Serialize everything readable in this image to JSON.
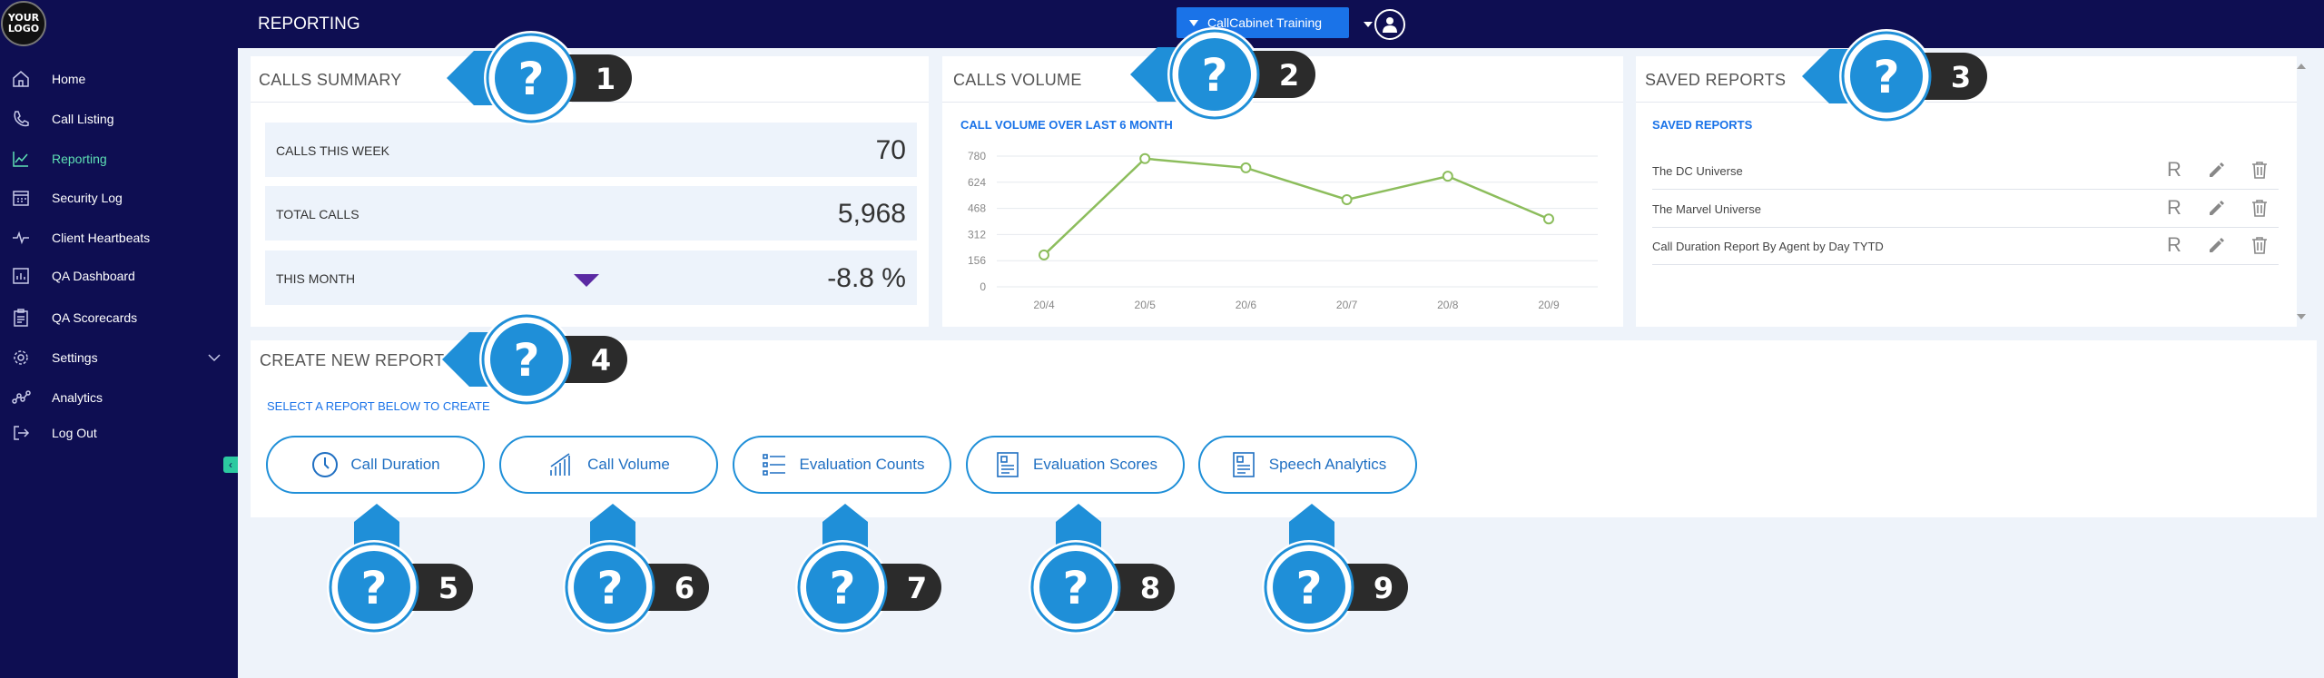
{
  "brand": {
    "logo_text": "YOUR LOGO"
  },
  "sidebar": {
    "items": [
      {
        "label": "Home",
        "icon": "home-icon"
      },
      {
        "label": "Call Listing",
        "icon": "phone-icon"
      },
      {
        "label": "Reporting",
        "icon": "chart-icon",
        "active": true
      },
      {
        "label": "Security Log",
        "icon": "calendar-icon"
      },
      {
        "label": "Client Heartbeats",
        "icon": "heartbeat-icon"
      },
      {
        "label": "QA Dashboard",
        "icon": "dashboard-icon"
      },
      {
        "label": "QA Scorecards",
        "icon": "clipboard-icon"
      },
      {
        "label": "Settings",
        "icon": "gear-icon",
        "expandable": true
      },
      {
        "label": "Analytics",
        "icon": "analytics-icon"
      },
      {
        "label": "Log Out",
        "icon": "logout-icon"
      }
    ],
    "collapse_glyph": "‹"
  },
  "header": {
    "title": "REPORTING",
    "account_label": "CallCabinet Training"
  },
  "calls_summary": {
    "title": "CALLS SUMMARY",
    "rows": [
      {
        "label": "CALLS THIS WEEK",
        "value": "70"
      },
      {
        "label": "TOTAL CALLS",
        "value": "5,968"
      },
      {
        "label": "THIS MONTH",
        "value": "-8.8 %",
        "trend": "down"
      }
    ]
  },
  "calls_volume": {
    "title": "CALLS VOLUME",
    "subtitle": "CALL VOLUME OVER LAST 6 MONTH"
  },
  "chart_data": {
    "type": "line",
    "categories": [
      "20/4",
      "20/5",
      "20/6",
      "20/7",
      "20/8",
      "20/9"
    ],
    "values": [
      190,
      765,
      710,
      520,
      660,
      405
    ],
    "yticks": [
      "780",
      "624",
      "468",
      "312",
      "156",
      "0"
    ],
    "ylim": [
      0,
      780
    ],
    "grid": true,
    "line_color": "#8cbd5c"
  },
  "saved_reports": {
    "title": "SAVED REPORTS",
    "subtitle": "SAVED REPORTS",
    "items": [
      {
        "name": "The DC Universe",
        "run_label": "R"
      },
      {
        "name": "The Marvel Universe",
        "run_label": "R"
      },
      {
        "name": "Call Duration Report By Agent by Day TYTD",
        "run_label": "R"
      }
    ]
  },
  "create_report": {
    "title": "CREATE NEW REPORT",
    "subtitle": "SELECT A REPORT BELOW TO CREATE",
    "buttons": [
      {
        "label": "Call Duration",
        "icon": "clock-icon"
      },
      {
        "label": "Call Volume",
        "icon": "bar-chart-icon"
      },
      {
        "label": "Evaluation Counts",
        "icon": "list-icon"
      },
      {
        "label": "Evaluation Scores",
        "icon": "score-doc-icon"
      },
      {
        "label": "Speech Analytics",
        "icon": "speech-doc-icon"
      }
    ]
  },
  "callouts": [
    "1",
    "2",
    "3",
    "4",
    "5",
    "6",
    "7",
    "8",
    "9"
  ],
  "colors": {
    "sidebar": "#0e0e52",
    "accent": "#1a73e8",
    "active_nav": "#5ee0b4",
    "callout": "#1f8fd8",
    "trend_down": "#5b2aa3"
  }
}
